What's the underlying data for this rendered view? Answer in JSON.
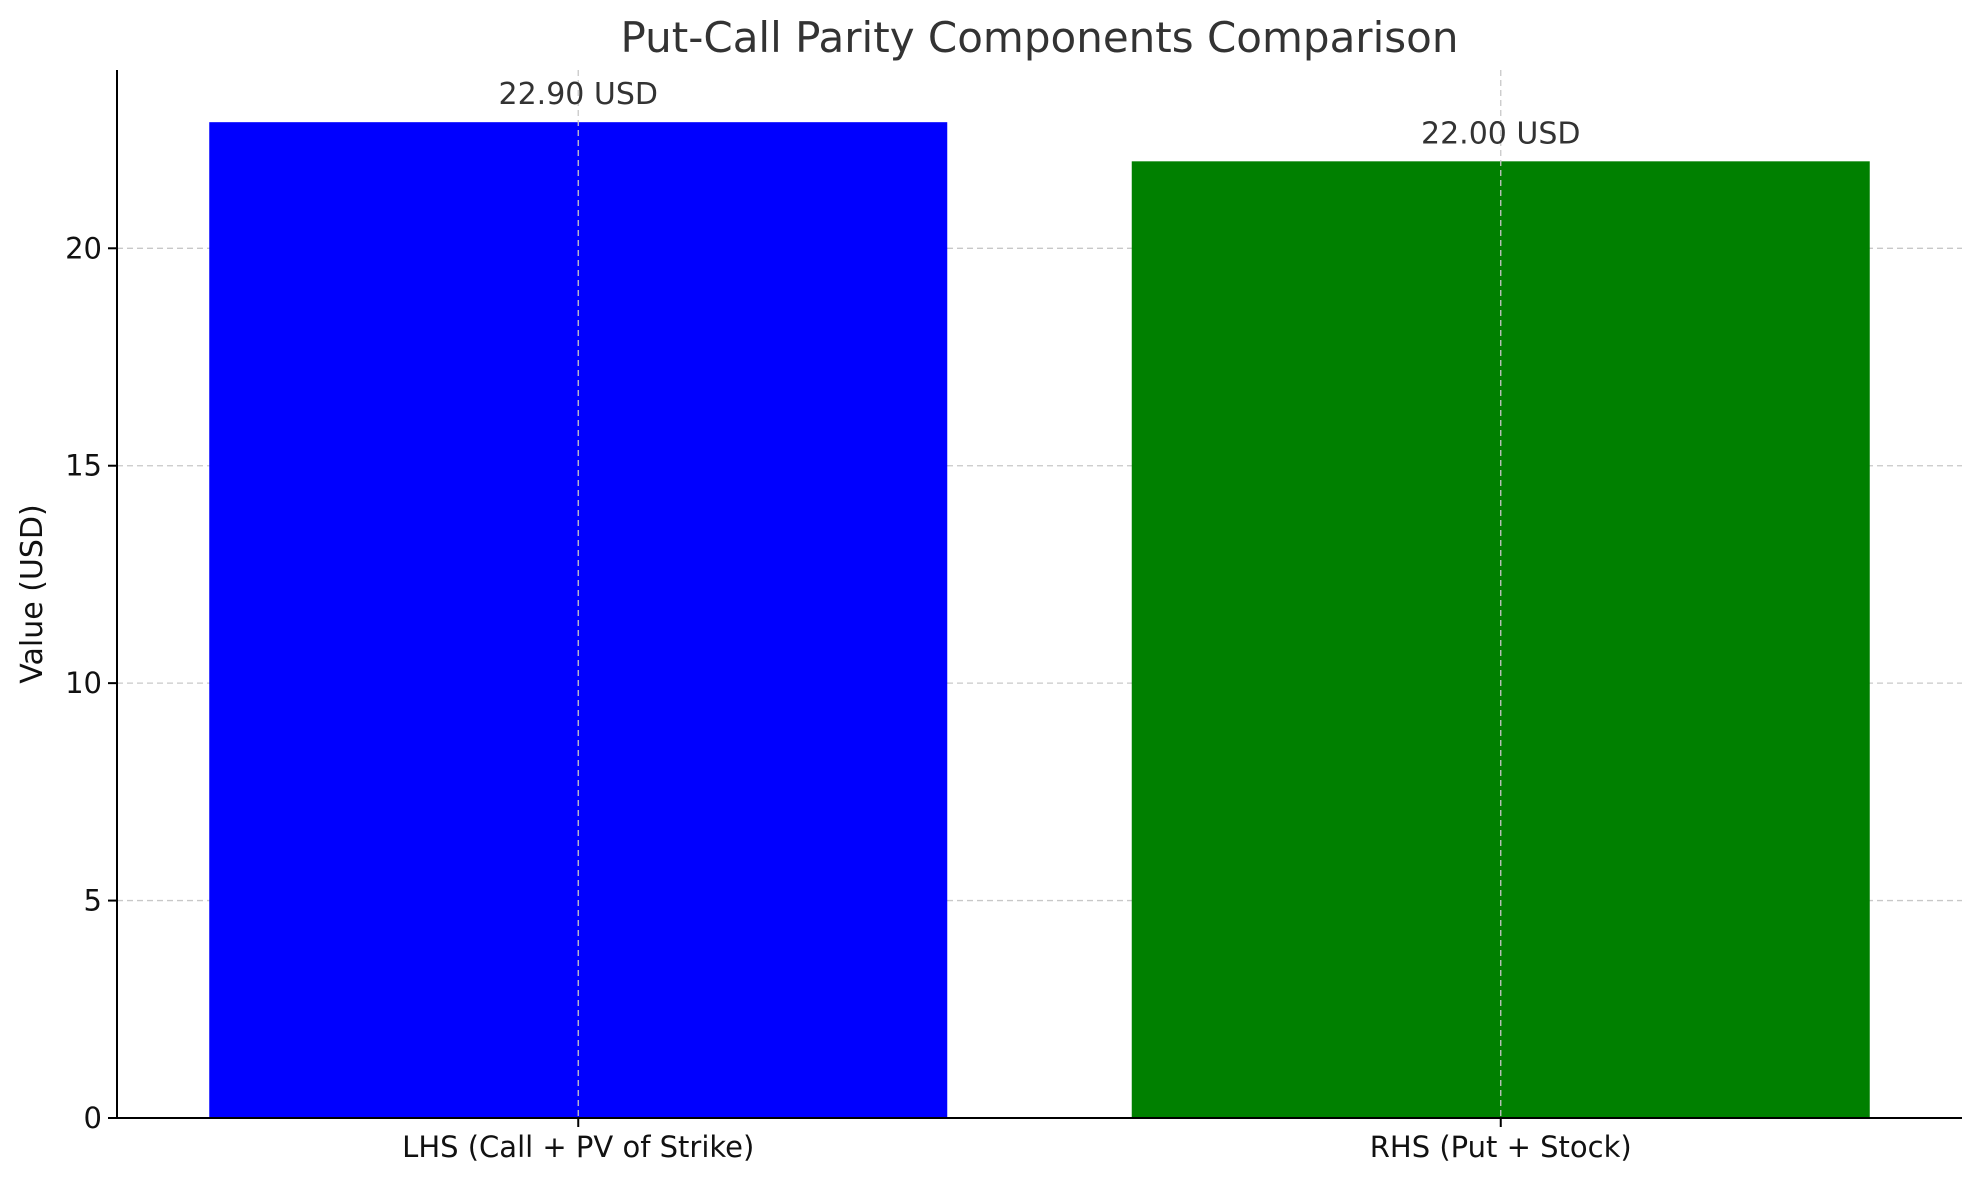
{
  "chart_data": {
    "type": "bar",
    "title": "Put-Call Parity Components Comparison",
    "xlabel": "",
    "ylabel": "Value (USD)",
    "categories": [
      "LHS (Call + PV of Strike)",
      "RHS (Put + Stock)"
    ],
    "values": [
      22.9,
      22.0
    ],
    "value_labels": [
      "22.90 USD",
      "22.00 USD"
    ],
    "colors": [
      "#0000ff",
      "#008000"
    ],
    "ylim": [
      0,
      24.1
    ],
    "yticks": [
      0,
      5,
      10,
      15,
      20
    ],
    "grid": true,
    "grid_color": "#c8c8c8"
  }
}
